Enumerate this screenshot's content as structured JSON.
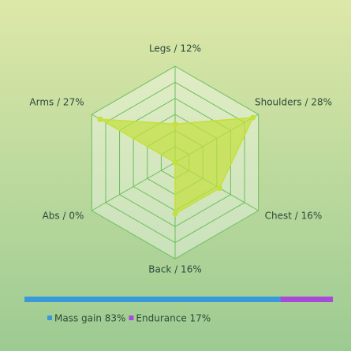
{
  "chart_data": [
    {
      "type": "radar",
      "categories": [
        "Legs / 12%",
        "Shoulders / 28%",
        "Chest / 16%",
        "Back / 16%",
        "Abs / 0%",
        "Arms / 27%"
      ],
      "values": [
        12,
        28,
        16,
        16,
        0,
        27
      ],
      "rlim": [
        0,
        30
      ],
      "rticks": [
        5,
        10,
        15,
        20,
        25,
        30
      ],
      "color": "#c4e03c",
      "grid": true
    },
    {
      "type": "stackedbar",
      "series": [
        {
          "name": "Mass gain 83%",
          "color": "#3a9ad9",
          "values": [
            83
          ]
        },
        {
          "name": "Endurance 17%",
          "color": "#a84ad8",
          "values": [
            17
          ]
        }
      ],
      "xlim": [
        0,
        100
      ]
    }
  ]
}
